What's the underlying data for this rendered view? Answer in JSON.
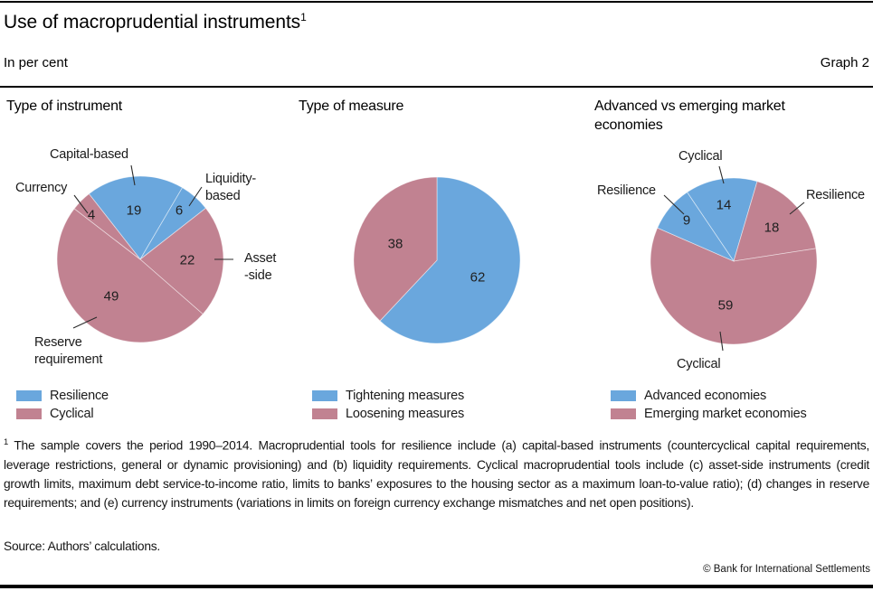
{
  "colors": {
    "blue": "#6aa7dd",
    "pink": "#c18291"
  },
  "header": {
    "title": "Use of macroprudential instruments",
    "title_superscript": "1",
    "unit_label": "In per cent",
    "graph_label": "Graph 2"
  },
  "chart_data": [
    {
      "type": "pie",
      "title": "Type of instrument",
      "start_angle_deg": -38,
      "slices": [
        {
          "label": "Capital-based",
          "value": 19,
          "color": "blue"
        },
        {
          "label": "Liquidity-\nbased",
          "value": 6,
          "color": "blue"
        },
        {
          "label": "Asset\n-side",
          "value": 22,
          "color": "pink"
        },
        {
          "label": "Reserve\nrequirement",
          "value": 49,
          "color": "pink"
        },
        {
          "label": "Currency",
          "value": 4,
          "color": "pink"
        }
      ],
      "legend": [
        {
          "color": "blue",
          "label": "Resilience"
        },
        {
          "color": "pink",
          "label": "Cyclical"
        }
      ]
    },
    {
      "type": "pie",
      "title": "Type of measure",
      "start_angle_deg": 0,
      "slices": [
        {
          "value": 62,
          "color": "blue"
        },
        {
          "value": 38,
          "color": "pink"
        }
      ],
      "legend": [
        {
          "color": "blue",
          "label": "Tightening measures"
        },
        {
          "color": "pink",
          "label": "Loosening measures"
        }
      ]
    },
    {
      "type": "pie",
      "title": "Advanced vs emerging market economies",
      "start_angle_deg": -34,
      "slices": [
        {
          "label": "Cyclical",
          "value": 14,
          "color": "blue"
        },
        {
          "label": "Resilience",
          "value": 18,
          "color": "pink"
        },
        {
          "label": "Cyclical",
          "value": 59,
          "color": "pink"
        },
        {
          "label": "Resilience",
          "value": 9,
          "color": "blue"
        }
      ],
      "legend": [
        {
          "color": "blue",
          "label": "Advanced economies"
        },
        {
          "color": "pink",
          "label": "Emerging market economies"
        }
      ]
    }
  ],
  "footnote": {
    "marker": "1",
    "text": "The sample covers the period 1990–2014. Macroprudential tools for resilience include (a) capital-based instruments (countercyclical capital requirements, leverage restrictions, general or dynamic provisioning) and (b) liquidity requirements. Cyclical macroprudential tools include (c) asset-side instruments (credit growth limits, maximum debt service-to-income ratio, limits to banks’ exposures to the housing sector as a maximum loan-to-value ratio); (d) changes in reserve requirements; and (e) currency instruments (variations in limits on foreign currency exchange mismatches and net open positions).",
    "source": "Source: Authors’ calculations.",
    "copyright": "© Bank for International Settlements"
  }
}
